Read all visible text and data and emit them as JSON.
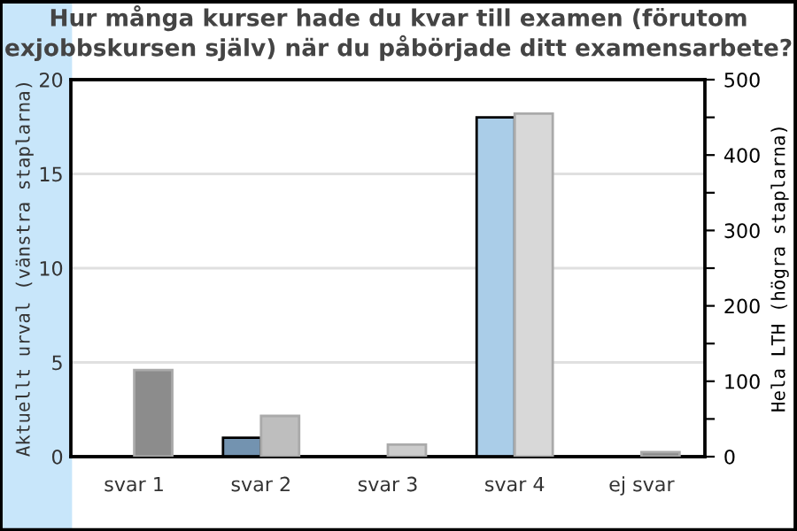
{
  "chart_data": {
    "type": "bar",
    "title": "Hur många kurser hade du kvar till examen (förutom exjobbskursen själv) när du påbörjade ditt examensarbete?",
    "categories": [
      "svar 1",
      "svar 2",
      "svar 3",
      "svar 4",
      "ej svar"
    ],
    "ylabel": "Aktuellt urval (vänstra staplarna)",
    "y2label": "Hela LTH (högra staplarna)",
    "series": [
      {
        "colors": [
          "#7393b0",
          "#7393b0",
          "#7393b0",
          "#aacde8",
          "#7393b0"
        ],
        "values": [
          0,
          1,
          0,
          18,
          0
        ]
      },
      {
        "axis": "y2",
        "colors": [
          "#8c8c8c",
          "#bebebe",
          "#cccccc",
          "#d8d8d8",
          "#8c8c8c"
        ],
        "values": [
          115,
          54,
          16,
          455,
          6
        ]
      }
    ],
    "ylim": [
      0,
      20
    ],
    "yticks": [
      0,
      5,
      10,
      15,
      20
    ],
    "y2lim": [
      0,
      500
    ],
    "y2ticks": [
      0,
      {
        "value": 50,
        "label": null
      },
      100,
      {
        "value": 150,
        "label": null
      },
      200,
      {
        "value": 250,
        "label": null
      },
      300,
      {
        "value": 350,
        "label": null
      },
      400,
      {
        "value": 450,
        "label": null
      },
      500
    ],
    "grid": "y"
  }
}
